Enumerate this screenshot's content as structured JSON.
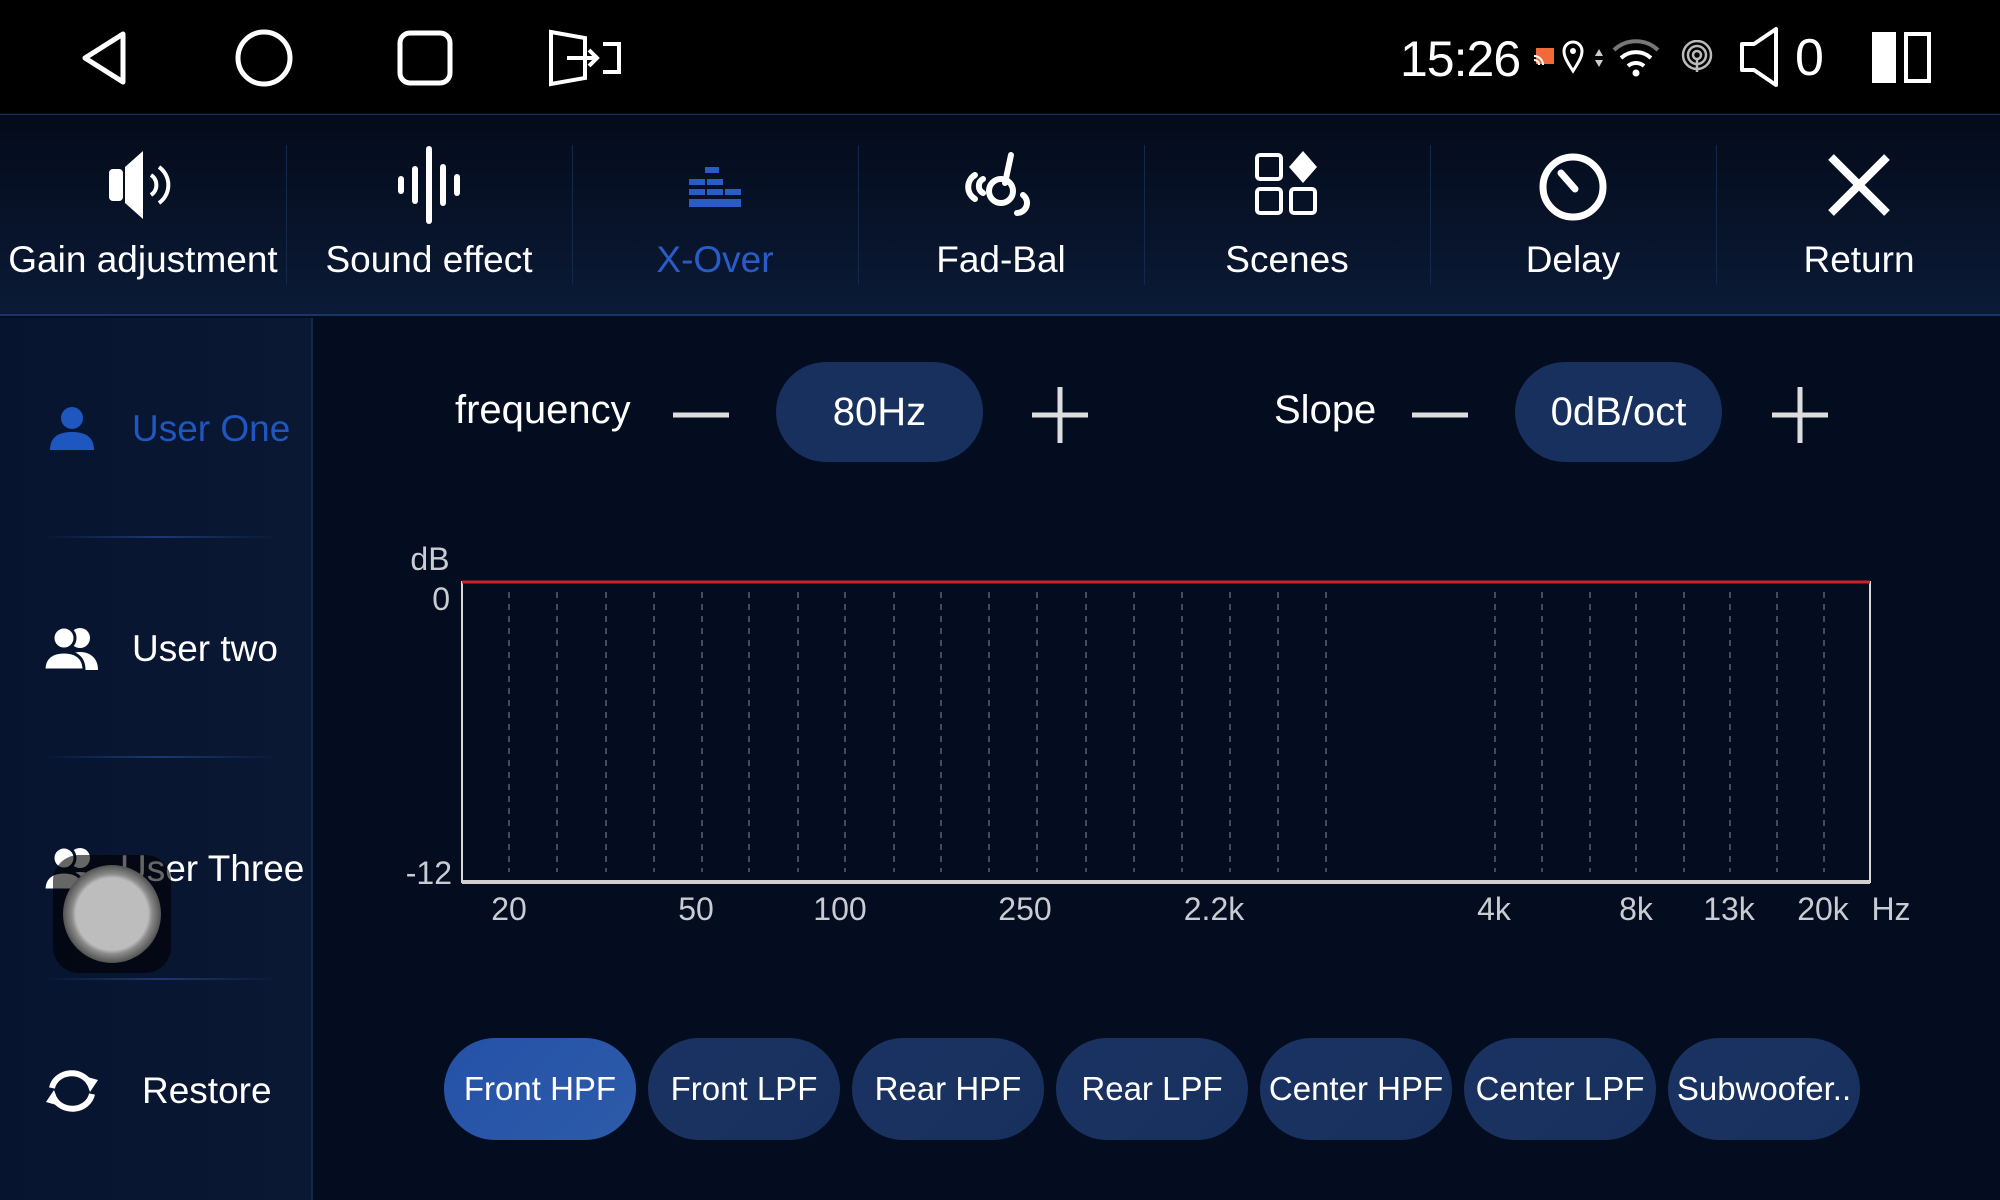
{
  "status_bar": {
    "nav_icons": [
      "back-icon",
      "home-icon",
      "recents-icon",
      "screen-switch-icon"
    ],
    "time": "15:26",
    "status_icons": [
      "cast-icon",
      "location-icon",
      "data-arrows-icon",
      "wifi-icon",
      "hotspot-icon",
      "volume-icon"
    ],
    "volume": "0",
    "split-screen-icon": "split-screen-icon"
  },
  "tabs": [
    {
      "label": "Gain adjustment",
      "icon": "speaker-icon"
    },
    {
      "label": "Sound effect",
      "icon": "waveform-icon"
    },
    {
      "label": "X-Over",
      "icon": "crossover-bars-icon",
      "active": true
    },
    {
      "label": "Fad-Bal",
      "icon": "fader-balance-icon"
    },
    {
      "label": "Scenes",
      "icon": "scenes-grid-icon"
    },
    {
      "label": "Delay",
      "icon": "timer-icon"
    },
    {
      "label": "Return",
      "icon": "close-icon"
    }
  ],
  "sidebar": {
    "items": [
      {
        "label": "User One",
        "icon": "user-icon",
        "active": true
      },
      {
        "label": "User two",
        "icon": "users-icon"
      },
      {
        "label": "User Three",
        "icon": "users-icon"
      },
      {
        "label": "Restore",
        "icon": "refresh-icon"
      }
    ]
  },
  "controls": {
    "frequency_label": "frequency",
    "frequency_value": "80Hz",
    "slope_label": "Slope",
    "slope_value": "0dB/oct"
  },
  "chart_data": {
    "type": "line",
    "ylabel": "dB",
    "xunit": "Hz",
    "ylim": [
      -12,
      0
    ],
    "y_ticks": [
      "0",
      "-12"
    ],
    "x_ticks": [
      "20",
      "50",
      "100",
      "250",
      "2.2k",
      "4k",
      "8k",
      "13k",
      "20k"
    ],
    "grid": "vertical dashed",
    "series": [
      {
        "values": [
          0,
          0
        ],
        "x": [
          "20",
          "20k"
        ],
        "color": "#d0202a"
      }
    ]
  },
  "channels": [
    {
      "label": "Front HPF",
      "active": true
    },
    {
      "label": "Front LPF"
    },
    {
      "label": "Rear HPF"
    },
    {
      "label": "Rear LPF"
    },
    {
      "label": "Center HPF"
    },
    {
      "label": "Center LPF"
    },
    {
      "label": "Subwoofer.."
    }
  ],
  "colors": {
    "accent": "#2a5cc8",
    "background": "#040d1f",
    "curve": "#d0202a"
  }
}
